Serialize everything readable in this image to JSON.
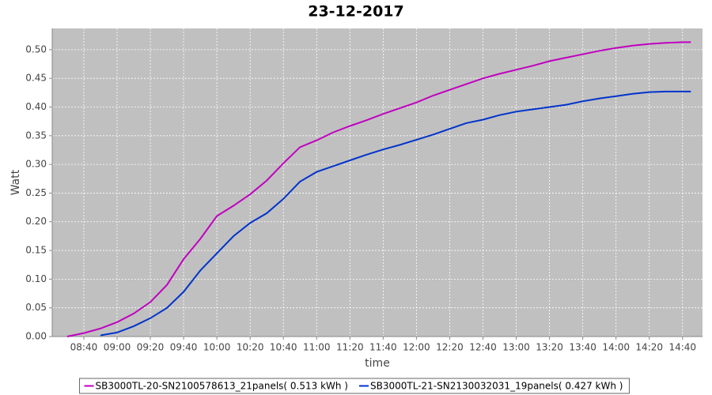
{
  "chart_data": {
    "type": "line",
    "title": "23-12-2017",
    "x_label": "time",
    "y_label": "Watt",
    "x": [
      "08:30",
      "08:40",
      "08:50",
      "09:00",
      "09:10",
      "09:20",
      "09:30",
      "09:40",
      "09:50",
      "10:00",
      "10:10",
      "10:20",
      "10:30",
      "10:40",
      "10:50",
      "11:00",
      "11:10",
      "11:20",
      "11:30",
      "11:40",
      "11:50",
      "12:00",
      "12:10",
      "12:20",
      "12:30",
      "12:40",
      "12:50",
      "13:00",
      "13:10",
      "13:20",
      "13:30",
      "13:40",
      "13:50",
      "14:00",
      "14:10",
      "14:20",
      "14:30",
      "14:40",
      "14:45"
    ],
    "series": [
      {
        "name": "SB3000TL-20-SN2100578613_21panels( 0.513 kWh )",
        "color": "#c000c0",
        "values": [
          0.0,
          0.006,
          0.014,
          0.025,
          0.04,
          0.06,
          0.09,
          0.135,
          0.17,
          0.21,
          0.228,
          0.248,
          0.272,
          0.302,
          0.33,
          0.342,
          0.356,
          0.367,
          0.377,
          0.388,
          0.398,
          0.408,
          0.42,
          0.43,
          0.44,
          0.45,
          0.458,
          0.465,
          0.472,
          0.48,
          0.486,
          0.492,
          0.498,
          0.503,
          0.507,
          0.51,
          0.512,
          0.513,
          0.513
        ]
      },
      {
        "name": "SB3000TL-21-SN2130032031_19panels( 0.427 kWh )",
        "color": "#0033cc",
        "values": [
          null,
          null,
          0.002,
          0.007,
          0.018,
          0.032,
          0.05,
          0.078,
          0.115,
          0.145,
          0.175,
          0.198,
          0.215,
          0.24,
          0.27,
          0.287,
          0.297,
          0.307,
          0.317,
          0.326,
          0.334,
          0.343,
          0.352,
          0.362,
          0.372,
          0.378,
          0.386,
          0.392,
          0.396,
          0.4,
          0.404,
          0.41,
          0.415,
          0.419,
          0.423,
          0.426,
          0.427,
          0.427,
          0.427
        ]
      }
    ],
    "xlim": [
      "08:21",
      "14:52"
    ],
    "xticks": [
      "08:40",
      "09:00",
      "09:20",
      "09:40",
      "10:00",
      "10:20",
      "10:40",
      "11:00",
      "11:20",
      "11:40",
      "12:00",
      "12:20",
      "12:40",
      "13:00",
      "13:20",
      "13:40",
      "14:00",
      "14:20",
      "14:40"
    ],
    "ylim": [
      0,
      0.537
    ],
    "yticks": [
      {
        "value": 0,
        "label": "0.00"
      },
      {
        "value": 0.05,
        "label": "0.05"
      },
      {
        "value": 0.1,
        "label": "0.10"
      },
      {
        "value": 0.15,
        "label": "0.15"
      },
      {
        "value": 0.2,
        "label": "0.20"
      },
      {
        "value": 0.25,
        "label": "0.25"
      },
      {
        "value": 0.3,
        "label": "0.30"
      },
      {
        "value": 0.35,
        "label": "0.35"
      },
      {
        "value": 0.4,
        "label": "0.40"
      },
      {
        "value": 0.45,
        "label": "0.45"
      },
      {
        "value": 0.5,
        "label": "0.50"
      }
    ],
    "grid": true,
    "legend": "bottom"
  }
}
